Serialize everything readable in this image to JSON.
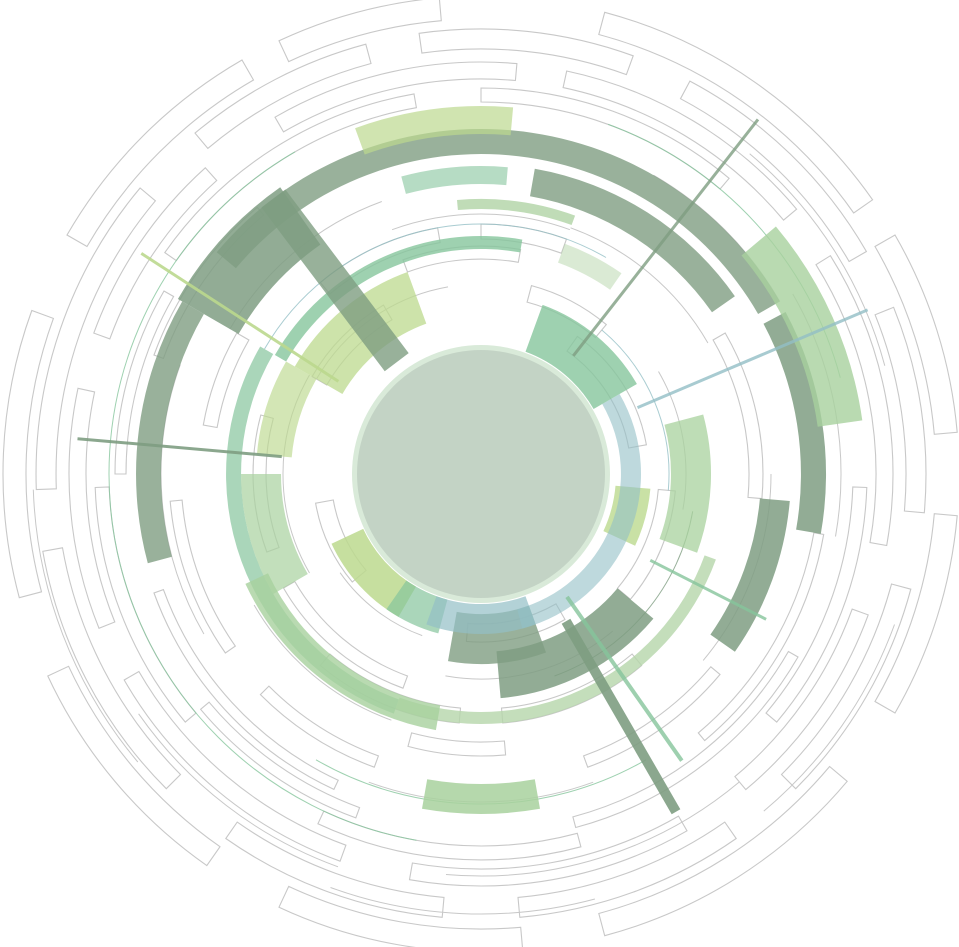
{
  "artwork": {
    "subject": "concentric-segmented-rings",
    "palette": {
      "background": "#ffffff",
      "core": "#c3d3c5",
      "core_ring": "#d9ead9",
      "outline": "#c8c8c8",
      "sage": "#7f9e82",
      "mint": "#86c59c",
      "lime": "#bcd98e",
      "pale_green": "#a8d19e",
      "blue_gray": "#93bfc6",
      "light_green": "#b5d6aa"
    }
  }
}
